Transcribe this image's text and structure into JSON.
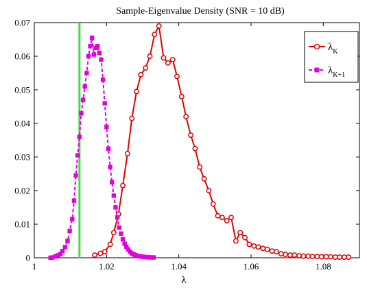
{
  "chart_data": {
    "type": "line",
    "title": "Sample-Eigenvalue Density (SNR = 10 dB)",
    "xlabel": "λ",
    "ylabel": "",
    "xlim": [
      1.0,
      1.09
    ],
    "ylim": [
      0,
      0.07
    ],
    "grid": false,
    "legend_position": "top-right",
    "x_ticks": [
      1.0,
      1.02,
      1.04,
      1.06,
      1.08
    ],
    "x_tick_labels": [
      "1",
      "1.02",
      "1.04",
      "1.06",
      "1.08"
    ],
    "y_ticks": [
      0,
      0.01,
      0.02,
      0.03,
      0.04,
      0.05,
      0.06,
      0.07
    ],
    "y_tick_labels": [
      "0",
      "0.01",
      "0.02",
      "0.03",
      "0.04",
      "0.05",
      "0.06",
      "0.07"
    ],
    "vertical_line": {
      "x": 1.0125,
      "color": "#4cd64c"
    },
    "series": [
      {
        "name": "λK",
        "legend_base": "λ",
        "legend_sub": "K",
        "color": "#e00000",
        "marker": "circle",
        "linestyle": "solid",
        "x": [
          1.0167,
          1.0183,
          1.0195,
          1.021,
          1.022,
          1.0233,
          1.0245,
          1.0258,
          1.027,
          1.0283,
          1.0295,
          1.0308,
          1.032,
          1.0333,
          1.0345,
          1.0358,
          1.037,
          1.0383,
          1.0395,
          1.0408,
          1.042,
          1.0433,
          1.0445,
          1.0458,
          1.047,
          1.0483,
          1.0495,
          1.0508,
          1.052,
          1.0533,
          1.0545,
          1.0558,
          1.057,
          1.0583,
          1.0595,
          1.0608,
          1.062,
          1.0633,
          1.0645,
          1.0658,
          1.067,
          1.0683,
          1.0695,
          1.0708,
          1.072,
          1.0733,
          1.0745,
          1.0758,
          1.077,
          1.0783,
          1.0795,
          1.0808,
          1.082,
          1.0833,
          1.0845,
          1.0858,
          1.087
        ],
        "y": [
          0.0008,
          0.0013,
          0.0018,
          0.004,
          0.0075,
          0.013,
          0.0215,
          0.031,
          0.0415,
          0.0495,
          0.0545,
          0.0565,
          0.06,
          0.0665,
          0.069,
          0.0595,
          0.058,
          0.059,
          0.054,
          0.048,
          0.042,
          0.0365,
          0.0325,
          0.027,
          0.0235,
          0.02,
          0.016,
          0.0125,
          0.012,
          0.011,
          0.012,
          0.005,
          0.0075,
          0.006,
          0.004,
          0.0035,
          0.0032,
          0.0028,
          0.0025,
          0.002,
          0.0018,
          0.0012,
          0.001,
          0.0008,
          0.0008,
          0.0006,
          0.0005,
          0.0005,
          0.0004,
          0.0004,
          0.0003,
          0.0003,
          0.0003,
          0.0002,
          0.0002,
          0.0002,
          0.0002
        ]
      },
      {
        "name": "λK+1",
        "legend_base": "λ",
        "legend_sub": "K+1",
        "color": "#e000e0",
        "marker": "square",
        "linestyle": "dashed",
        "x": [
          1.0045,
          1.005,
          1.0058,
          1.0065,
          1.0072,
          1.0078,
          1.0085,
          1.0092,
          1.0098,
          1.0105,
          1.011,
          1.0115,
          1.012,
          1.0125,
          1.013,
          1.0135,
          1.014,
          1.0145,
          1.015,
          1.0155,
          1.016,
          1.0165,
          1.017,
          1.0175,
          1.018,
          1.0185,
          1.019,
          1.0195,
          1.02,
          1.0205,
          1.021,
          1.0215,
          1.022,
          1.0225,
          1.023,
          1.0235,
          1.024,
          1.0245,
          1.025,
          1.0255,
          1.026,
          1.0265,
          1.027,
          1.0275,
          1.028,
          1.0285,
          1.029,
          1.0295,
          1.03,
          1.0305,
          1.031,
          1.0315,
          1.032,
          1.0325,
          1.033
        ],
        "y": [
          0.0,
          0.0001,
          0.0004,
          0.0007,
          0.0011,
          0.002,
          0.0032,
          0.005,
          0.008,
          0.0115,
          0.017,
          0.0245,
          0.0305,
          0.036,
          0.043,
          0.047,
          0.051,
          0.055,
          0.06,
          0.063,
          0.0655,
          0.0605,
          0.0625,
          0.063,
          0.061,
          0.059,
          0.053,
          0.046,
          0.039,
          0.0325,
          0.027,
          0.0225,
          0.0185,
          0.015,
          0.012,
          0.009,
          0.0072,
          0.0055,
          0.0042,
          0.0033,
          0.0025,
          0.0018,
          0.0013,
          0.001,
          0.0008,
          0.0006,
          0.0005,
          0.0004,
          0.0003,
          0.0002,
          0.0002,
          0.0002,
          0.0001,
          0.0001,
          0.0001
        ]
      }
    ]
  }
}
